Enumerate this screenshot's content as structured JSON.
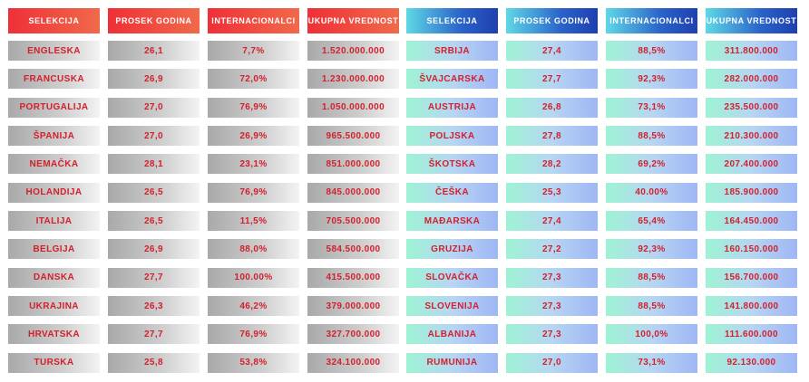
{
  "left": {
    "headers": [
      "SELEKCIJA",
      "PROSEK GODINA",
      "INTERNACIONALCI",
      "UKUPNA VREDNOST"
    ],
    "rows": [
      [
        "ENGLESKA",
        "26,1",
        "7,7%",
        "1.520.000.000"
      ],
      [
        "FRANCUSKA",
        "26,9",
        "72,0%",
        "1.230.000.000"
      ],
      [
        "PORTUGALIJA",
        "27,0",
        "76,9%",
        "1.050.000.000"
      ],
      [
        "ŠPANIJA",
        "27,0",
        "26,9%",
        "965.500.000"
      ],
      [
        "NEMAČKA",
        "28,1",
        "23,1%",
        "851.000.000"
      ],
      [
        "HOLANDIJA",
        "26,5",
        "76,9%",
        "845.000.000"
      ],
      [
        "ITALIJA",
        "26,5",
        "11,5%",
        "705.500.000"
      ],
      [
        "BELGIJA",
        "26,9",
        "88,0%",
        "584.500.000"
      ],
      [
        "DANSKA",
        "27,7",
        "100.00%",
        "415.500.000"
      ],
      [
        "UKRAJINA",
        "26,3",
        "46,2%",
        "379.000.000"
      ],
      [
        "HRVATSKA",
        "27,7",
        "76,9%",
        "327.700.000"
      ],
      [
        "TURSKA",
        "25,8",
        "53,8%",
        "324.100.000"
      ]
    ]
  },
  "right": {
    "headers": [
      "SELEKCIJA",
      "PROSEK GODINA",
      "INTERNACIONALCI",
      "UKUPNA VREDNOST"
    ],
    "rows": [
      [
        "SRBIJA",
        "27,4",
        "88,5%",
        "311.800.000"
      ],
      [
        "ŠVAJCARSKA",
        "27,7",
        "92,3%",
        "282.000.000"
      ],
      [
        "AUSTRIJA",
        "26,8",
        "73,1%",
        "235.500.000"
      ],
      [
        "POLJSKA",
        "27,8",
        "88,5%",
        "210.300.000"
      ],
      [
        "ŠKOTSKA",
        "28,2",
        "69,2%",
        "207.400.000"
      ],
      [
        "ČEŠKA",
        "25,3",
        "40.00%",
        "185.900.000"
      ],
      [
        "MAĐARSKA",
        "27,4",
        "65,4%",
        "164.450.000"
      ],
      [
        "GRUZIJA",
        "27,2",
        "92,3%",
        "160.150.000"
      ],
      [
        "SLOVAČKA",
        "27,3",
        "88,5%",
        "156.700.000"
      ],
      [
        "SLOVENIJA",
        "27,3",
        "88,5%",
        "141.800.000"
      ],
      [
        "ALBANIJA",
        "27,3",
        "100,0%",
        "111.600.000"
      ],
      [
        "RUMUNIJA",
        "27,0",
        "73,1%",
        "92.130.000"
      ]
    ]
  }
}
